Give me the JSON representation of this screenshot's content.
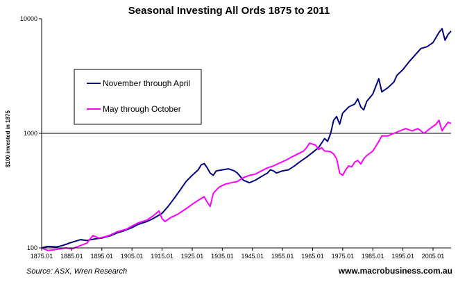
{
  "chart_data": {
    "type": "line",
    "title": "Seasonal Investing All Ords 1875 to 2011",
    "ylabel": "$100 invested in 1875",
    "xlabel": "",
    "yscale": "log",
    "ylim": [
      100,
      10000
    ],
    "xlim": [
      1875,
      2011
    ],
    "x_ticks": [
      "1875.01",
      "1885.01",
      "1895.01",
      "1905.01",
      "1915.01",
      "1925.01",
      "1935.01",
      "1945.01",
      "1955.01",
      "1965.01",
      "1975.01",
      "1985.01",
      "1995.01",
      "2005.01"
    ],
    "y_ticks": [
      "100",
      "1000",
      "10000"
    ],
    "gridlines": [
      1000
    ],
    "legend_position": "upper-left",
    "series": [
      {
        "name": "November through April",
        "color": "#000080",
        "points": [
          [
            1875,
            100
          ],
          [
            1877,
            103
          ],
          [
            1880,
            102
          ],
          [
            1882,
            105
          ],
          [
            1885,
            112
          ],
          [
            1888,
            118
          ],
          [
            1890,
            116
          ],
          [
            1893,
            120
          ],
          [
            1895,
            122
          ],
          [
            1898,
            128
          ],
          [
            1900,
            135
          ],
          [
            1902,
            140
          ],
          [
            1905,
            150
          ],
          [
            1907,
            160
          ],
          [
            1910,
            170
          ],
          [
            1912,
            180
          ],
          [
            1915,
            200
          ],
          [
            1917,
            230
          ],
          [
            1919,
            270
          ],
          [
            1921,
            320
          ],
          [
            1923,
            380
          ],
          [
            1925,
            430
          ],
          [
            1927,
            480
          ],
          [
            1928,
            530
          ],
          [
            1929,
            545
          ],
          [
            1930,
            500
          ],
          [
            1931,
            450
          ],
          [
            1932,
            430
          ],
          [
            1933,
            470
          ],
          [
            1935,
            480
          ],
          [
            1937,
            490
          ],
          [
            1939,
            470
          ],
          [
            1940,
            450
          ],
          [
            1941,
            420
          ],
          [
            1942,
            390
          ],
          [
            1944,
            370
          ],
          [
            1946,
            390
          ],
          [
            1948,
            420
          ],
          [
            1950,
            450
          ],
          [
            1951,
            480
          ],
          [
            1952,
            470
          ],
          [
            1953,
            450
          ],
          [
            1955,
            470
          ],
          [
            1957,
            480
          ],
          [
            1959,
            520
          ],
          [
            1961,
            570
          ],
          [
            1963,
            620
          ],
          [
            1965,
            680
          ],
          [
            1967,
            750
          ],
          [
            1969,
            900
          ],
          [
            1970,
            850
          ],
          [
            1971,
            1000
          ],
          [
            1972,
            1300
          ],
          [
            1973,
            1400
          ],
          [
            1974,
            1200
          ],
          [
            1975,
            1500
          ],
          [
            1977,
            1700
          ],
          [
            1979,
            1800
          ],
          [
            1980,
            2000
          ],
          [
            1981,
            1700
          ],
          [
            1982,
            1600
          ],
          [
            1983,
            1900
          ],
          [
            1985,
            2200
          ],
          [
            1987,
            3000
          ],
          [
            1988,
            2300
          ],
          [
            1990,
            2500
          ],
          [
            1992,
            2800
          ],
          [
            1993,
            3200
          ],
          [
            1995,
            3600
          ],
          [
            1997,
            4200
          ],
          [
            1999,
            4800
          ],
          [
            2001,
            5500
          ],
          [
            2003,
            5700
          ],
          [
            2005,
            6200
          ],
          [
            2007,
            7600
          ],
          [
            2008,
            8200
          ],
          [
            2009,
            6500
          ],
          [
            2010,
            7300
          ],
          [
            2011,
            7800
          ]
        ]
      },
      {
        "name": "May through October",
        "color": "#ff00ff",
        "points": [
          [
            1875,
            100
          ],
          [
            1877,
            95
          ],
          [
            1880,
            97
          ],
          [
            1883,
            100
          ],
          [
            1885,
            98
          ],
          [
            1888,
            105
          ],
          [
            1890,
            110
          ],
          [
            1892,
            128
          ],
          [
            1894,
            122
          ],
          [
            1896,
            125
          ],
          [
            1898,
            130
          ],
          [
            1900,
            138
          ],
          [
            1903,
            145
          ],
          [
            1905,
            155
          ],
          [
            1907,
            165
          ],
          [
            1910,
            175
          ],
          [
            1912,
            190
          ],
          [
            1914,
            210
          ],
          [
            1915,
            180
          ],
          [
            1916,
            170
          ],
          [
            1918,
            185
          ],
          [
            1920,
            195
          ],
          [
            1923,
            220
          ],
          [
            1925,
            240
          ],
          [
            1927,
            260
          ],
          [
            1929,
            280
          ],
          [
            1930,
            250
          ],
          [
            1931,
            230
          ],
          [
            1932,
            300
          ],
          [
            1934,
            340
          ],
          [
            1936,
            360
          ],
          [
            1938,
            370
          ],
          [
            1940,
            380
          ],
          [
            1942,
            410
          ],
          [
            1944,
            430
          ],
          [
            1946,
            440
          ],
          [
            1948,
            470
          ],
          [
            1950,
            500
          ],
          [
            1952,
            520
          ],
          [
            1954,
            550
          ],
          [
            1956,
            580
          ],
          [
            1958,
            620
          ],
          [
            1960,
            660
          ],
          [
            1962,
            700
          ],
          [
            1963,
            750
          ],
          [
            1964,
            820
          ],
          [
            1966,
            790
          ],
          [
            1967,
            720
          ],
          [
            1968,
            750
          ],
          [
            1969,
            700
          ],
          [
            1970,
            700
          ],
          [
            1971,
            690
          ],
          [
            1972,
            660
          ],
          [
            1973,
            600
          ],
          [
            1974,
            450
          ],
          [
            1975,
            430
          ],
          [
            1976,
            480
          ],
          [
            1977,
            520
          ],
          [
            1978,
            510
          ],
          [
            1979,
            560
          ],
          [
            1980,
            580
          ],
          [
            1981,
            540
          ],
          [
            1982,
            600
          ],
          [
            1983,
            640
          ],
          [
            1985,
            700
          ],
          [
            1987,
            850
          ],
          [
            1988,
            950
          ],
          [
            1990,
            950
          ],
          [
            1992,
            1000
          ],
          [
            1994,
            1050
          ],
          [
            1996,
            1100
          ],
          [
            1998,
            1050
          ],
          [
            2000,
            1100
          ],
          [
            2002,
            1000
          ],
          [
            2004,
            1100
          ],
          [
            2006,
            1200
          ],
          [
            2007,
            1300
          ],
          [
            2008,
            1050
          ],
          [
            2009,
            1150
          ],
          [
            2010,
            1250
          ],
          [
            2011,
            1220
          ]
        ]
      }
    ]
  },
  "footer": {
    "source": "Source: ASX, Wren Research",
    "website": "www.macrobusiness.com.au"
  }
}
